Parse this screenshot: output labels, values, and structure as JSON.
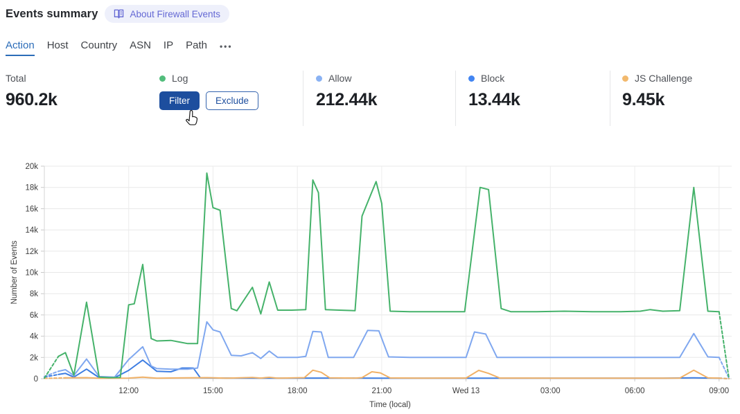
{
  "header": {
    "title": "Events summary",
    "badge_label": "About Firewall Events"
  },
  "tabs": {
    "items": [
      {
        "label": "Action",
        "active": true
      },
      {
        "label": "Host",
        "active": false
      },
      {
        "label": "Country",
        "active": false
      },
      {
        "label": "ASN",
        "active": false
      },
      {
        "label": "IP",
        "active": false
      },
      {
        "label": "Path",
        "active": false
      }
    ],
    "more_label": "•••"
  },
  "stats": {
    "total": {
      "label": "Total",
      "value": "960.2k"
    },
    "log": {
      "label": "Log",
      "dot_color": "#52bd7c",
      "filter_label": "Filter",
      "exclude_label": "Exclude"
    },
    "allow": {
      "label": "Allow",
      "value": "212.44k",
      "dot_color": "#8ab2f3"
    },
    "block": {
      "label": "Block",
      "value": "13.44k",
      "dot_color": "#4285f2"
    },
    "js_challenge": {
      "label": "JS Challenge",
      "value": "9.45k",
      "dot_color": "#f2b96d"
    }
  },
  "chart_data": {
    "type": "line",
    "xlabel": "Time (local)",
    "ylabel": "Number of Events",
    "ylim": [
      0,
      20000
    ],
    "grid": true,
    "legend_position": "stat cards above chart",
    "y_ticks": [
      {
        "label": "0",
        "v": 0
      },
      {
        "label": "2k",
        "v": 2
      },
      {
        "label": "4k",
        "v": 4
      },
      {
        "label": "6k",
        "v": 6
      },
      {
        "label": "8k",
        "v": 8
      },
      {
        "label": "10k",
        "v": 10
      },
      {
        "label": "12k",
        "v": 12
      },
      {
        "label": "14k",
        "v": 14
      },
      {
        "label": "16k",
        "v": 16
      },
      {
        "label": "18k",
        "v": 18
      },
      {
        "label": "20k",
        "v": 20
      }
    ],
    "x_hours_range": [
      0,
      24.35
    ],
    "x_start_time": "Tue 09:00",
    "x_ticks": [
      {
        "label": "12:00",
        "t": 3
      },
      {
        "label": "15:00",
        "t": 6
      },
      {
        "label": "18:00",
        "t": 9
      },
      {
        "label": "21:00",
        "t": 12
      },
      {
        "label": "Wed 13",
        "t": 15
      },
      {
        "label": "03:00",
        "t": 18
      },
      {
        "label": "06:00",
        "t": 21
      },
      {
        "label": "09:00",
        "t": 24
      }
    ],
    "partial_end_style": "first and last segment dashed (incomplete buckets)",
    "series": [
      {
        "name": "Log",
        "color": "#45b26a",
        "points_t_hours_value_k": [
          [
            0,
            0.05
          ],
          [
            0.5,
            2.1
          ],
          [
            0.75,
            2.45
          ],
          [
            1.05,
            0.33
          ],
          [
            1.5,
            7.2
          ],
          [
            1.95,
            0.15
          ],
          [
            2.3,
            0.1
          ],
          [
            2.7,
            0.12
          ],
          [
            3.0,
            6.95
          ],
          [
            3.2,
            7.05
          ],
          [
            3.5,
            10.75
          ],
          [
            3.8,
            3.77
          ],
          [
            4.0,
            3.55
          ],
          [
            4.5,
            3.6
          ],
          [
            4.8,
            3.45
          ],
          [
            5.1,
            3.3
          ],
          [
            5.45,
            3.3
          ],
          [
            5.78,
            19.35
          ],
          [
            6.0,
            16.1
          ],
          [
            6.25,
            15.85
          ],
          [
            6.65,
            6.6
          ],
          [
            6.85,
            6.4
          ],
          [
            7.4,
            8.6
          ],
          [
            7.7,
            6.1
          ],
          [
            8.0,
            9.1
          ],
          [
            8.3,
            6.45
          ],
          [
            8.8,
            6.45
          ],
          [
            9.3,
            6.5
          ],
          [
            9.55,
            18.7
          ],
          [
            9.75,
            17.5
          ],
          [
            10.0,
            6.5
          ],
          [
            10.5,
            6.45
          ],
          [
            11.05,
            6.4
          ],
          [
            11.3,
            15.3
          ],
          [
            11.8,
            18.55
          ],
          [
            12.0,
            16.5
          ],
          [
            12.3,
            6.35
          ],
          [
            13.0,
            6.3
          ],
          [
            14.0,
            6.3
          ],
          [
            14.95,
            6.3
          ],
          [
            15.5,
            18.0
          ],
          [
            15.8,
            17.8
          ],
          [
            16.25,
            6.6
          ],
          [
            16.6,
            6.3
          ],
          [
            17.5,
            6.3
          ],
          [
            18.5,
            6.35
          ],
          [
            19.5,
            6.3
          ],
          [
            20.5,
            6.3
          ],
          [
            21.2,
            6.35
          ],
          [
            21.55,
            6.5
          ],
          [
            22.0,
            6.35
          ],
          [
            22.6,
            6.4
          ],
          [
            23.1,
            18.0
          ],
          [
            23.6,
            6.35
          ],
          [
            24.0,
            6.3
          ],
          [
            24.35,
            0.05
          ]
        ]
      },
      {
        "name": "Allow",
        "color": "#7fa7ef",
        "points_t_hours_value_k": [
          [
            0,
            0.2
          ],
          [
            0.5,
            0.7
          ],
          [
            0.75,
            0.85
          ],
          [
            1.05,
            0.3
          ],
          [
            1.5,
            1.85
          ],
          [
            1.95,
            0.2
          ],
          [
            2.5,
            0.15
          ],
          [
            3.0,
            1.8
          ],
          [
            3.5,
            3.0
          ],
          [
            3.8,
            1.2
          ],
          [
            4.0,
            0.95
          ],
          [
            4.5,
            0.9
          ],
          [
            5.1,
            0.9
          ],
          [
            5.45,
            1.0
          ],
          [
            5.78,
            5.35
          ],
          [
            6.0,
            4.6
          ],
          [
            6.25,
            4.4
          ],
          [
            6.65,
            2.2
          ],
          [
            7.0,
            2.15
          ],
          [
            7.4,
            2.45
          ],
          [
            7.7,
            1.9
          ],
          [
            8.0,
            2.6
          ],
          [
            8.3,
            2.0
          ],
          [
            9.0,
            2.0
          ],
          [
            9.3,
            2.1
          ],
          [
            9.55,
            4.45
          ],
          [
            9.85,
            4.4
          ],
          [
            10.1,
            2.0
          ],
          [
            11.0,
            2.0
          ],
          [
            11.5,
            4.55
          ],
          [
            11.9,
            4.5
          ],
          [
            12.25,
            2.05
          ],
          [
            13.0,
            2.0
          ],
          [
            14.0,
            2.0
          ],
          [
            15.0,
            2.0
          ],
          [
            15.3,
            4.4
          ],
          [
            15.7,
            4.2
          ],
          [
            16.1,
            2.0
          ],
          [
            17.0,
            2.0
          ],
          [
            19.0,
            2.0
          ],
          [
            21.0,
            2.0
          ],
          [
            22.6,
            2.0
          ],
          [
            23.1,
            4.25
          ],
          [
            23.6,
            2.05
          ],
          [
            24.0,
            2.0
          ],
          [
            24.35,
            0.05
          ]
        ]
      },
      {
        "name": "Block",
        "color": "#3d7de2",
        "points_t_hours_value_k": [
          [
            0,
            0.15
          ],
          [
            0.5,
            0.4
          ],
          [
            0.75,
            0.5
          ],
          [
            1.05,
            0.15
          ],
          [
            1.5,
            0.9
          ],
          [
            1.95,
            0.1
          ],
          [
            2.5,
            0.1
          ],
          [
            3.0,
            0.78
          ],
          [
            3.5,
            1.75
          ],
          [
            4.0,
            0.7
          ],
          [
            4.5,
            0.65
          ],
          [
            4.9,
            1.0
          ],
          [
            5.3,
            1.0
          ],
          [
            5.55,
            0.08
          ],
          [
            6.5,
            0.06
          ],
          [
            8.0,
            0.05
          ],
          [
            10.0,
            0.06
          ],
          [
            12.0,
            0.05
          ],
          [
            14.0,
            0.05
          ],
          [
            16.0,
            0.05
          ],
          [
            18.0,
            0.05
          ],
          [
            20.0,
            0.05
          ],
          [
            22.0,
            0.05
          ],
          [
            23.1,
            0.08
          ],
          [
            24.0,
            0.05
          ],
          [
            24.35,
            0.0
          ]
        ]
      },
      {
        "name": "JS Challenge",
        "color": "#f0b167",
        "points_t_hours_value_k": [
          [
            0,
            0.03
          ],
          [
            0.75,
            0.08
          ],
          [
            1.5,
            0.1
          ],
          [
            2.0,
            0.04
          ],
          [
            3.0,
            0.06
          ],
          [
            3.5,
            0.15
          ],
          [
            4.0,
            0.05
          ],
          [
            5.78,
            0.1
          ],
          [
            6.5,
            0.05
          ],
          [
            7.4,
            0.12
          ],
          [
            7.7,
            0.06
          ],
          [
            8.0,
            0.13
          ],
          [
            8.3,
            0.05
          ],
          [
            9.25,
            0.1
          ],
          [
            9.55,
            0.8
          ],
          [
            9.85,
            0.6
          ],
          [
            10.15,
            0.08
          ],
          [
            11.0,
            0.05
          ],
          [
            11.3,
            0.1
          ],
          [
            11.65,
            0.65
          ],
          [
            11.95,
            0.55
          ],
          [
            12.3,
            0.07
          ],
          [
            13.5,
            0.05
          ],
          [
            15.0,
            0.06
          ],
          [
            15.45,
            0.78
          ],
          [
            15.8,
            0.5
          ],
          [
            16.2,
            0.06
          ],
          [
            18.0,
            0.05
          ],
          [
            20.0,
            0.05
          ],
          [
            22.0,
            0.05
          ],
          [
            22.6,
            0.06
          ],
          [
            23.1,
            0.8
          ],
          [
            23.6,
            0.08
          ],
          [
            24.0,
            0.05
          ],
          [
            24.35,
            0.0
          ]
        ]
      }
    ]
  }
}
